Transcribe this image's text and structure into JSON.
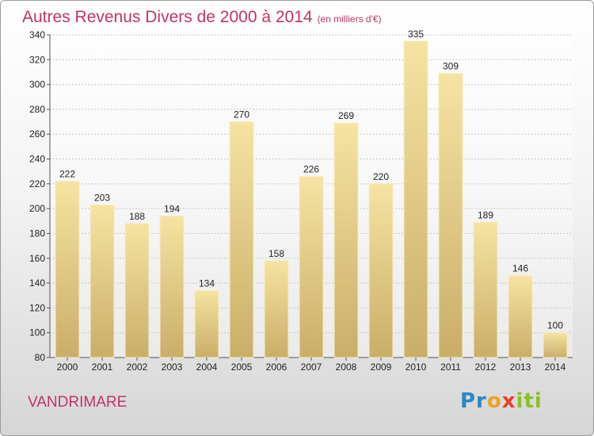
{
  "header": {
    "title": "Autres Revenus Divers de 2000 à 2014",
    "unit": "(en milliers d'€)"
  },
  "footer": {
    "town": "VANDRIMARE",
    "brand_logo_text": "Proxiti"
  },
  "colors": {
    "accent": "#c0336a",
    "bar_light": "#f6e3a2",
    "bar_dark": "#c9ae68"
  },
  "chart_data": {
    "type": "bar",
    "title": "Autres Revenus Divers de 2000 à 2014",
    "subtitle": "(en milliers d'€)",
    "xlabel": "",
    "ylabel": "",
    "categories": [
      "2000",
      "2001",
      "2002",
      "2003",
      "2004",
      "2005",
      "2006",
      "2007",
      "2008",
      "2009",
      "2010",
      "2011",
      "2012",
      "2013",
      "2014"
    ],
    "values": [
      222,
      203,
      188,
      194,
      134,
      270,
      158,
      226,
      269,
      220,
      335,
      309,
      189,
      146,
      100
    ],
    "ylim": [
      80,
      340
    ],
    "yticks": [
      80,
      100,
      120,
      140,
      160,
      180,
      200,
      220,
      240,
      260,
      280,
      300,
      320,
      340
    ],
    "grid": true
  }
}
